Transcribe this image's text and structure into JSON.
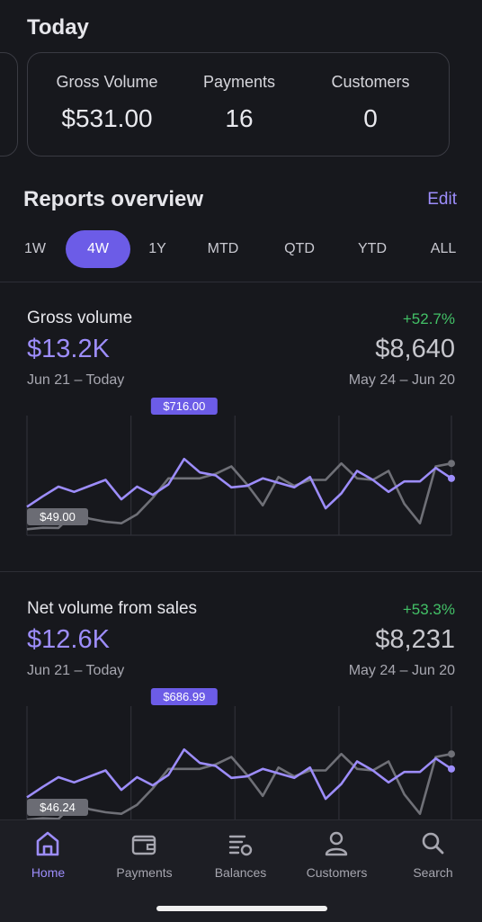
{
  "today": {
    "title": "Today",
    "metrics": [
      {
        "label": "Gross Volume",
        "value": "$531.00"
      },
      {
        "label": "Payments",
        "value": "16"
      },
      {
        "label": "Customers",
        "value": "0"
      }
    ]
  },
  "reports": {
    "title": "Reports overview",
    "edit_label": "Edit",
    "tabs": [
      "1W",
      "4W",
      "1Y",
      "MTD",
      "QTD",
      "YTD",
      "ALL"
    ],
    "active_tab": "4W"
  },
  "gross": {
    "title": "Gross volume",
    "change": "+52.7%",
    "value": "$13.2K",
    "prev_value": "$8,640",
    "range": "Jun 21 – Today",
    "prev_range": "May 24 – Jun 20",
    "max_label": "$716.00",
    "min_label": "$49.00"
  },
  "net": {
    "title": "Net volume from sales",
    "change": "+53.3%",
    "value": "$12.6K",
    "prev_value": "$8,231",
    "range": "Jun 21 – Today",
    "prev_range": "May 24 – Jun 20",
    "max_label": "$686.99",
    "min_label": "$46.24"
  },
  "colors": {
    "accent": "#6c5ce7",
    "current_series": "#9d8dfb",
    "previous_series": "#6f7077",
    "positive": "#43c167",
    "background": "#17181d"
  },
  "chart_data": [
    {
      "type": "line",
      "title": "Gross volume",
      "x": [
        1,
        2,
        3,
        4,
        5,
        6,
        7,
        8,
        9,
        10,
        11,
        12,
        13,
        14,
        15,
        16,
        17,
        18,
        19,
        20,
        21,
        22,
        23,
        24,
        25,
        26,
        27,
        28
      ],
      "ylim": [
        0,
        800
      ],
      "series": [
        {
          "values": [
            190,
            260,
            325,
            290,
            330,
            370,
            240,
            325,
            270,
            340,
            510,
            420,
            400,
            320,
            330,
            380,
            350,
            320,
            390,
            180,
            280,
            430,
            370,
            290,
            360,
            360,
            450,
            380
          ]
        },
        {
          "values": [
            40,
            50,
            49,
            150,
            110,
            90,
            80,
            140,
            250,
            380,
            380,
            380,
            410,
            460,
            340,
            200,
            390,
            330,
            370,
            370,
            480,
            380,
            370,
            430,
            210,
            80,
            460,
            480
          ]
        }
      ]
    },
    {
      "type": "line",
      "title": "Net volume from sales",
      "x": [
        1,
        2,
        3,
        4,
        5,
        6,
        7,
        8,
        9,
        10,
        11,
        12,
        13,
        14,
        15,
        16,
        17,
        18,
        19,
        20,
        21,
        22,
        23,
        24,
        25,
        26,
        27,
        28
      ],
      "ylim": [
        0,
        800
      ],
      "series": [
        {
          "values": [
            190,
            260,
            325,
            290,
            330,
            370,
            240,
            325,
            270,
            340,
            510,
            420,
            400,
            320,
            330,
            380,
            350,
            320,
            390,
            180,
            280,
            430,
            370,
            290,
            360,
            360,
            450,
            380
          ]
        },
        {
          "values": [
            40,
            50,
            46,
            150,
            110,
            90,
            80,
            140,
            250,
            380,
            380,
            380,
            410,
            460,
            340,
            200,
            390,
            330,
            370,
            370,
            480,
            380,
            370,
            430,
            210,
            80,
            460,
            480
          ]
        }
      ]
    }
  ],
  "nav": {
    "items": [
      {
        "label": "Home",
        "icon": "home-icon"
      },
      {
        "label": "Payments",
        "icon": "wallet-icon"
      },
      {
        "label": "Balances",
        "icon": "balances-icon"
      },
      {
        "label": "Customers",
        "icon": "person-icon"
      },
      {
        "label": "Search",
        "icon": "search-icon"
      }
    ],
    "active": "Home"
  }
}
